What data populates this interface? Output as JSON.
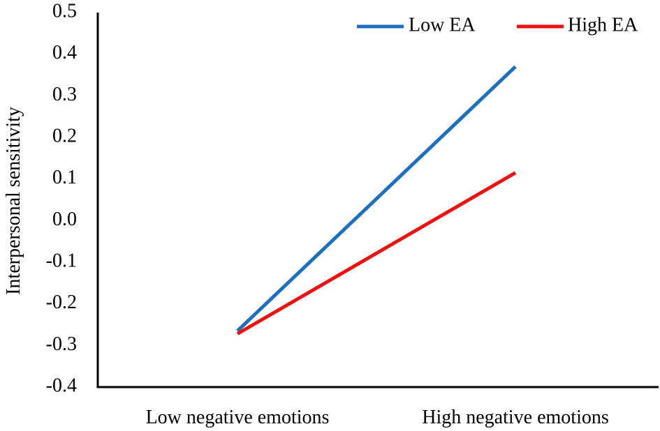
{
  "chart_data": {
    "type": "line",
    "title": "",
    "xlabel": "",
    "ylabel": "Interpersonal sensitivity",
    "categories": [
      "Low negative emotions",
      "High negative emotions"
    ],
    "ylim": [
      -0.4,
      0.5
    ],
    "yticks": [
      "0.5",
      "0.4",
      "0.3",
      "0.2",
      "0.1",
      "0.0",
      "-0.1",
      "-0.2",
      "-0.3",
      "-0.4"
    ],
    "ytick_values": [
      0.5,
      0.4,
      0.3,
      0.2,
      0.1,
      0.0,
      -0.1,
      -0.2,
      -0.3,
      -0.4
    ],
    "grid": false,
    "legend_position": "top-right",
    "series": [
      {
        "name": "Low EA",
        "color": "#1f6fbf",
        "values": [
          -0.265,
          0.37
        ]
      },
      {
        "name": "High EA",
        "color": "#ee1111",
        "values": [
          -0.272,
          0.115
        ]
      }
    ]
  }
}
